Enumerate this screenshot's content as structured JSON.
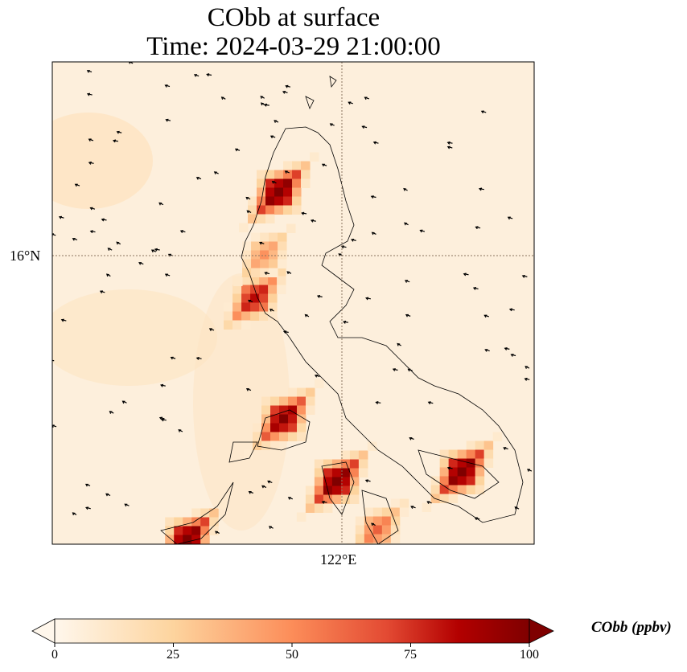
{
  "title_line1": "CObb at surface",
  "title_line2": "Time: 2024-03-29 21:00:00",
  "chart_data": {
    "type": "heatmap",
    "variable": "CObb",
    "units": "ppbv",
    "extent_lon": [
      116,
      126
    ],
    "extent_lat": [
      10,
      20
    ],
    "xticks": [
      {
        "value": 122,
        "label": "122°E"
      }
    ],
    "yticks": [
      {
        "value": 16,
        "label": "16°N"
      }
    ],
    "grid": true,
    "hotspots": [
      {
        "lon": 120.7,
        "lat": 17.3,
        "value": 100
      },
      {
        "lon": 120.2,
        "lat": 15.1,
        "value": 70
      },
      {
        "lon": 120.4,
        "lat": 16.0,
        "value": 35
      },
      {
        "lon": 120.8,
        "lat": 12.6,
        "value": 90
      },
      {
        "lon": 121.9,
        "lat": 11.3,
        "value": 100
      },
      {
        "lon": 124.5,
        "lat": 11.5,
        "value": 100
      },
      {
        "lon": 118.8,
        "lat": 10.1,
        "value": 100
      },
      {
        "lon": 122.75,
        "lat": 10.3,
        "value": 45
      }
    ],
    "colorbar": {
      "label": "CObb (ppbv)",
      "range": [
        0,
        100
      ],
      "ticks": [
        "0",
        "25",
        "50",
        "75",
        "100"
      ],
      "colormap": [
        "#fff7ec",
        "#fdd49e",
        "#fc8d59",
        "#d7301f",
        "#b30000",
        "#7f0000"
      ],
      "extend": "both"
    }
  }
}
